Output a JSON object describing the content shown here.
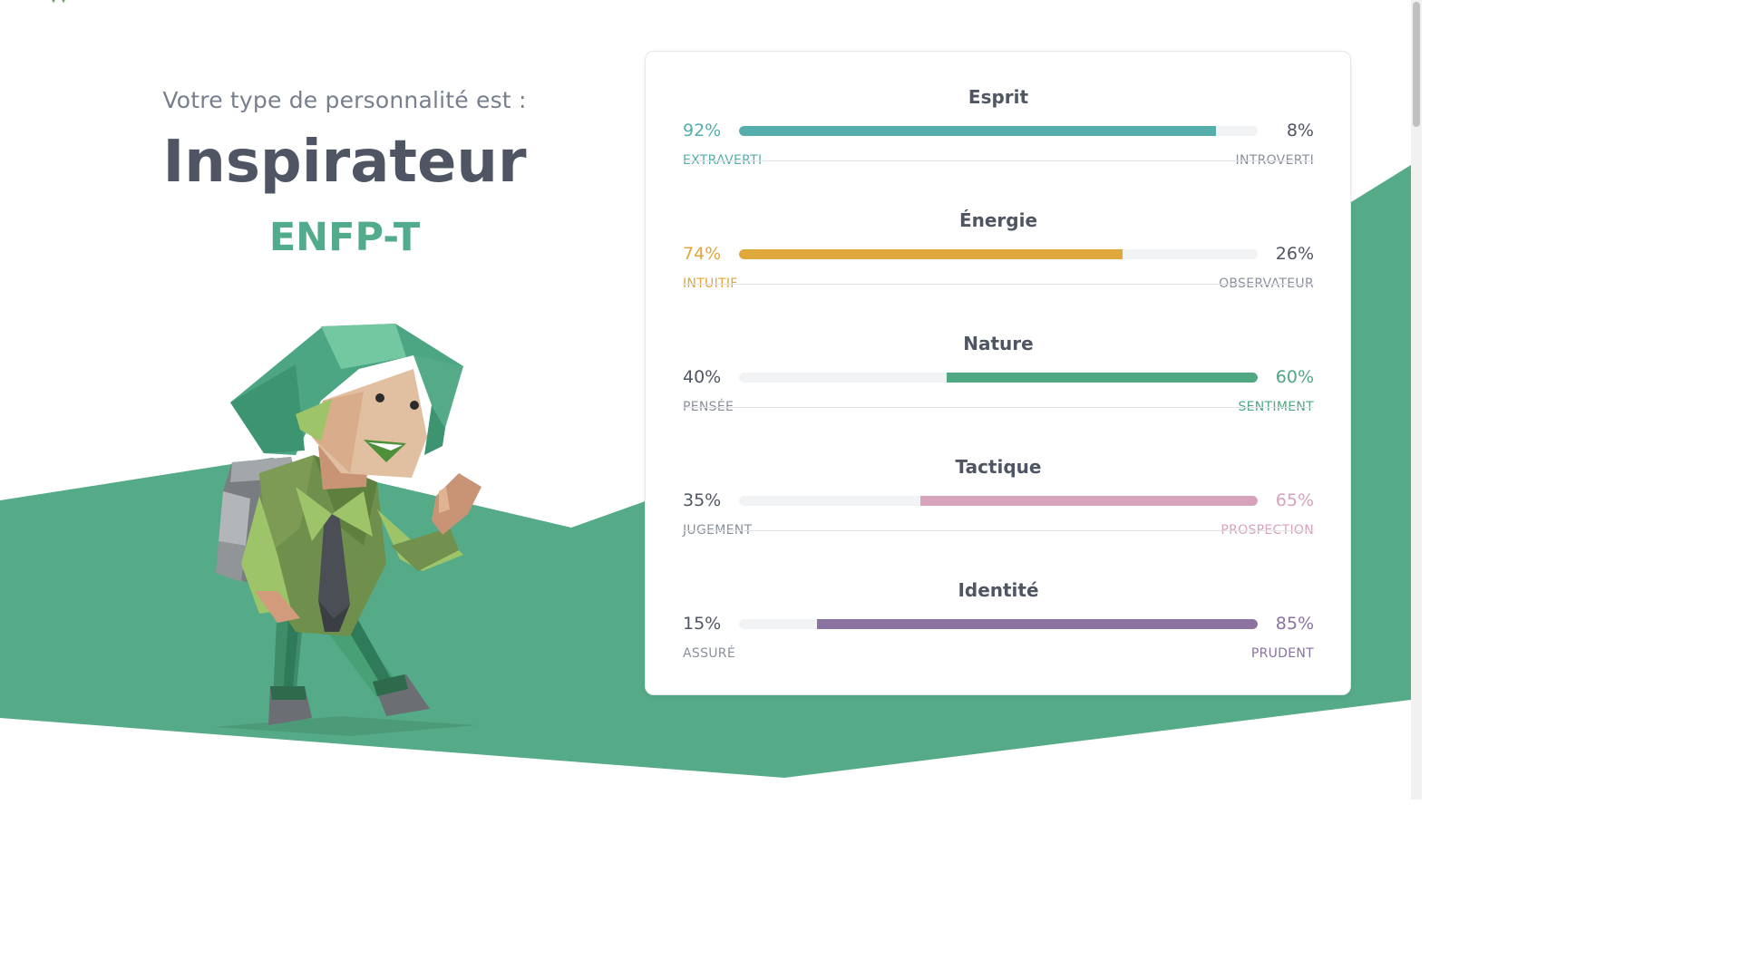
{
  "intro": {
    "lead": "Votre type de personnalité est :",
    "type_name": "Inspirateur",
    "type_code": "ENFP-T"
  },
  "colors": {
    "background_green": "#55ab88",
    "heading": "#4f5563",
    "muted_text": "#777f8e",
    "type_code": "#52ab8a",
    "neutral_text": "#4f5563",
    "neutral_label": "#8a909b",
    "bar_track": "#f2f3f4"
  },
  "traits": [
    {
      "title": "Esprit",
      "left_pct": "92%",
      "right_pct": "8%",
      "left_label": "EXTRAVERTI",
      "right_label": "INTROVERTI",
      "dominant": "left",
      "value": 92,
      "color": "#55adac"
    },
    {
      "title": "Énergie",
      "left_pct": "74%",
      "right_pct": "26%",
      "left_label": "INTUITIF",
      "right_label": "OBSERVATEUR",
      "dominant": "left",
      "value": 74,
      "color": "#e0a73d"
    },
    {
      "title": "Nature",
      "left_pct": "40%",
      "right_pct": "60%",
      "left_label": "PENSÉE",
      "right_label": "SENTIMENT",
      "dominant": "right",
      "value": 60,
      "color": "#4fa881"
    },
    {
      "title": "Tactique",
      "left_pct": "35%",
      "right_pct": "65%",
      "left_label": "JUGEMENT",
      "right_label": "PROSPECTION",
      "dominant": "right",
      "value": 65,
      "color": "#d7a3bb"
    },
    {
      "title": "Identité",
      "left_pct": "15%",
      "right_pct": "85%",
      "left_label": "ASSURÉ",
      "right_label": "PRUDENT",
      "dominant": "right",
      "value": 85,
      "color": "#8a73a0"
    }
  ]
}
